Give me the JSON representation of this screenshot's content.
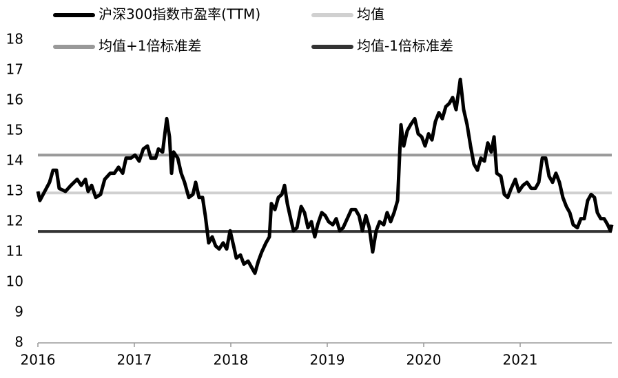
{
  "chart_data": {
    "type": "line",
    "xlim": [
      2016,
      2021.95
    ],
    "xticks": [
      2016,
      2017,
      2018,
      2019,
      2020,
      2021
    ],
    "ylim": [
      8,
      18
    ],
    "yticks": [
      8,
      9,
      10,
      11,
      12,
      13,
      14,
      15,
      16,
      17,
      18
    ],
    "x": [
      2016,
      2016.021,
      2016.071,
      2016.121,
      2016.157,
      2016.193,
      2016.221,
      2016.286,
      2016.343,
      2016.407,
      2016.45,
      2016.493,
      2016.521,
      2016.557,
      2016.6,
      2016.65,
      2016.693,
      2016.75,
      2016.793,
      2016.836,
      2016.879,
      2016.914,
      2016.964,
      2017.007,
      2017.05,
      2017.093,
      2017.136,
      2017.171,
      2017.221,
      2017.25,
      2017.293,
      2017.336,
      2017.364,
      2017.386,
      2017.407,
      2017.45,
      2017.486,
      2017.521,
      2017.564,
      2017.607,
      2017.636,
      2017.671,
      2017.707,
      2017.736,
      2017.771,
      2017.807,
      2017.843,
      2017.879,
      2017.921,
      2017.957,
      2017.993,
      2018.029,
      2018.057,
      2018.1,
      2018.136,
      2018.179,
      2018.214,
      2018.25,
      2018.286,
      2018.321,
      2018.364,
      2018.4,
      2018.421,
      2018.457,
      2018.493,
      2018.529,
      2018.557,
      2018.586,
      2018.621,
      2018.65,
      2018.686,
      2018.729,
      2018.764,
      2018.8,
      2018.836,
      2018.871,
      2018.9,
      2018.943,
      2018.979,
      2019.014,
      2019.057,
      2019.093,
      2019.129,
      2019.164,
      2019.207,
      2019.25,
      2019.293,
      2019.329,
      2019.364,
      2019.4,
      2019.436,
      2019.471,
      2019.507,
      2019.543,
      2019.586,
      2019.621,
      2019.657,
      2019.693,
      2019.729,
      2019.764,
      2019.793,
      2019.829,
      2019.864,
      2019.907,
      2019.943,
      2019.979,
      2020.014,
      2020.05,
      2020.086,
      2020.121,
      2020.157,
      2020.193,
      2020.229,
      2020.264,
      2020.3,
      2020.336,
      2020.379,
      2020.414,
      2020.45,
      2020.486,
      2020.521,
      2020.557,
      2020.593,
      2020.629,
      2020.664,
      2020.7,
      2020.729,
      2020.757,
      2020.8,
      2020.836,
      2020.871,
      2020.907,
      2020.95,
      2020.986,
      2021.029,
      2021.071,
      2021.114,
      2021.157,
      2021.193,
      2021.229,
      2021.264,
      2021.3,
      2021.336,
      2021.371,
      2021.407,
      2021.443,
      2021.479,
      2021.514,
      2021.55,
      2021.593,
      2021.629,
      2021.664,
      2021.7,
      2021.736,
      2021.771,
      2021.8,
      2021.836,
      2021.871,
      2021.907,
      2021.936,
      2021.95
    ],
    "series": [
      {
        "name": "沪深300指数市盈率(TTM)",
        "color": "#000000",
        "values": [
          13.0,
          12.7,
          13.0,
          13.3,
          13.7,
          13.7,
          13.1,
          13.0,
          13.2,
          13.4,
          13.2,
          13.4,
          13.0,
          13.2,
          12.8,
          12.9,
          13.4,
          13.6,
          13.6,
          13.8,
          13.6,
          14.1,
          14.1,
          14.2,
          14.0,
          14.4,
          14.5,
          14.1,
          14.1,
          14.4,
          14.3,
          15.4,
          14.8,
          13.6,
          14.3,
          14.1,
          13.6,
          13.3,
          12.8,
          12.9,
          13.3,
          12.8,
          12.8,
          12.2,
          11.3,
          11.5,
          11.2,
          11.1,
          11.3,
          11.1,
          11.7,
          11.2,
          10.8,
          10.9,
          10.6,
          10.7,
          10.5,
          10.3,
          10.7,
          11.0,
          11.3,
          11.5,
          12.6,
          12.4,
          12.8,
          12.9,
          13.2,
          12.6,
          12.1,
          11.7,
          11.8,
          12.5,
          12.3,
          11.8,
          12.0,
          11.5,
          11.9,
          12.3,
          12.2,
          12.0,
          11.9,
          12.1,
          11.7,
          11.8,
          12.1,
          12.4,
          12.4,
          12.2,
          11.7,
          12.2,
          11.8,
          11.0,
          11.7,
          12.0,
          11.9,
          12.3,
          12.0,
          12.3,
          12.7,
          15.2,
          14.5,
          15.0,
          15.2,
          15.4,
          14.9,
          14.8,
          14.5,
          14.9,
          14.7,
          15.3,
          15.6,
          15.4,
          15.8,
          15.9,
          16.1,
          15.7,
          16.7,
          15.7,
          15.2,
          14.5,
          13.9,
          13.7,
          14.1,
          14.0,
          14.6,
          14.3,
          14.8,
          13.6,
          13.5,
          12.9,
          12.8,
          13.1,
          13.4,
          13.0,
          13.2,
          13.3,
          13.1,
          13.1,
          13.3,
          14.1,
          14.1,
          13.5,
          13.3,
          13.6,
          13.3,
          12.8,
          12.5,
          12.3,
          11.9,
          11.8,
          12.1,
          12.1,
          12.7,
          12.9,
          12.8,
          12.3,
          12.1,
          12.1,
          11.9,
          11.7,
          11.9
        ]
      }
    ],
    "reference_lines": [
      {
        "name": "均值",
        "color": "#d0d0d0",
        "value": 12.95
      },
      {
        "name": "均值+1倍标准差",
        "color": "#999999",
        "value": 14.2
      },
      {
        "name": "均值-1倍标准差",
        "color": "#333333",
        "value": 11.68
      }
    ]
  }
}
